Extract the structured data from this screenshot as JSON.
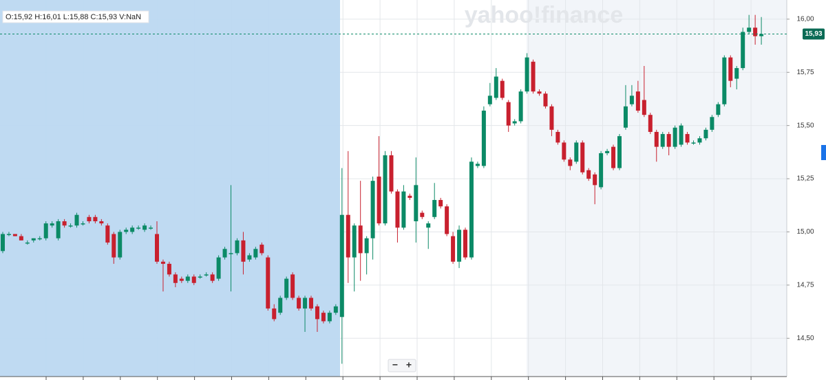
{
  "chart_data": {
    "type": "candlestick",
    "ohlc_label": "O:15,92  H:16,01  L:15,88  C:15,93  V:NaN",
    "watermark": "yahoo!finance",
    "zoom_out": "−",
    "zoom_in": "+",
    "last_price": {
      "value": 15.93,
      "label": "15,93"
    },
    "ylim": [
      14.32,
      16.09
    ],
    "yticks": [
      {
        "value": 14.5,
        "label": "14,50"
      },
      {
        "value": 14.75,
        "label": "14,75"
      },
      {
        "value": 15,
        "label": "15,00"
      },
      {
        "value": 15.25,
        "label": "15,25"
      },
      {
        "value": 15.5,
        "label": "15,50"
      },
      {
        "value": 15.75,
        "label": "15,75"
      },
      {
        "value": 16,
        "label": "16,00"
      }
    ],
    "grid": true,
    "up_color": "#0b8a66",
    "down_color": "#c8202e",
    "open": [
      14.91,
      14.99,
      14.99,
      14.98,
      14.95,
      14.96,
      14.97,
      14.97,
      15.03,
      14.97,
      15.05,
      15.03,
      15.03,
      15.04,
      15.07,
      15.07,
      15.05,
      15.03,
      14.99,
      14.88,
      15.0,
      15.0,
      15.02,
      15.01,
      15.02,
      14.99,
      14.86,
      14.85,
      14.8,
      14.78,
      14.77,
      14.79,
      14.79,
      14.8,
      14.8,
      14.78,
      14.88,
      14.9,
      14.9,
      14.96,
      14.87,
      14.88,
      14.94,
      14.88,
      14.64,
      14.62,
      14.69,
      14.8,
      14.69,
      14.64,
      14.69,
      14.65,
      14.62,
      14.58,
      14.62,
      14.6,
      15.08,
      14.88,
      15.03,
      14.9,
      14.97,
      15.26,
      15.04,
      15.36,
      15.19,
      15.02,
      15.17,
      15.05,
      15.09,
      15.02,
      15.07,
      15.15,
      15.12,
      14.98,
      14.86,
      15.01,
      14.88,
      15.31,
      15.31,
      15.6,
      15.63,
      15.71,
      15.61,
      15.51,
      15.52,
      15.66,
      15.8,
      15.66,
      15.65,
      15.59,
      15.47,
      15.42,
      15.34,
      15.33,
      15.42,
      15.29,
      15.27,
      15.21,
      15.37,
      15.4,
      15.3,
      15.49,
      15.6,
      15.66,
      15.62,
      15.55,
      15.47,
      15.4,
      15.46,
      15.4,
      15.41,
      15.46,
      15.42,
      15.42,
      15.44,
      15.48,
      15.55,
      15.6,
      15.82,
      15.72,
      15.77,
      15.94,
      15.96,
      15.92
    ],
    "high": [
      15.0,
      15.0,
      14.99,
      14.99,
      14.96,
      14.97,
      14.98,
      15.05,
      15.05,
      15.06,
      15.06,
      15.04,
      15.09,
      15.05,
      15.08,
      15.08,
      15.06,
      15.04,
      15.0,
      15.01,
      15.02,
      15.03,
      15.03,
      15.04,
      15.03,
      15.05,
      14.87,
      14.86,
      14.81,
      14.79,
      14.8,
      14.8,
      14.8,
      14.81,
      14.81,
      14.89,
      14.93,
      15.22,
      14.97,
      15.0,
      14.9,
      14.93,
      14.95,
      14.89,
      14.66,
      14.7,
      14.79,
      14.81,
      14.7,
      14.7,
      14.7,
      14.66,
      14.63,
      14.63,
      14.66,
      15.3,
      15.38,
      15.04,
      15.24,
      14.98,
      15.26,
      15.45,
      15.38,
      15.38,
      15.2,
      15.22,
      15.18,
      15.35,
      15.1,
      15.05,
      15.23,
      15.16,
      15.13,
      15.0,
      15.03,
      15.02,
      15.35,
      15.33,
      15.59,
      15.7,
      15.77,
      15.72,
      15.62,
      15.53,
      15.67,
      15.84,
      15.81,
      15.67,
      15.66,
      15.6,
      15.48,
      15.43,
      15.35,
      15.43,
      15.43,
      15.3,
      15.28,
      15.38,
      15.39,
      15.41,
      15.46,
      15.69,
      15.69,
      15.71,
      15.78,
      15.56,
      15.48,
      15.47,
      15.47,
      15.5,
      15.51,
      15.47,
      15.43,
      15.45,
      15.49,
      15.55,
      15.61,
      15.83,
      15.83,
      15.78,
      15.96,
      16.02,
      16.02,
      16.01
    ],
    "low": [
      14.9,
      14.98,
      14.98,
      14.96,
      14.94,
      14.95,
      14.96,
      14.96,
      15.02,
      14.96,
      15.02,
      15.02,
      15.02,
      15.03,
      15.04,
      15.04,
      15.03,
      14.94,
      14.85,
      14.87,
      14.99,
      14.99,
      15.01,
      15.0,
      15.01,
      14.85,
      14.72,
      14.79,
      14.74,
      14.76,
      14.76,
      14.75,
      14.78,
      14.79,
      14.76,
      14.77,
      14.87,
      14.72,
      14.89,
      14.8,
      14.86,
      14.87,
      14.89,
      14.63,
      14.58,
      14.61,
      14.68,
      14.68,
      14.63,
      14.53,
      14.63,
      14.53,
      14.57,
      14.57,
      14.61,
      14.38,
      14.76,
      14.72,
      14.77,
      14.8,
      14.87,
      15.03,
      15.03,
      15.18,
      14.95,
      15.01,
      15.15,
      14.95,
      15.06,
      14.92,
      15.06,
      15.11,
      14.98,
      14.85,
      14.83,
      14.87,
      14.87,
      15.3,
      15.3,
      15.59,
      15.62,
      15.62,
      15.47,
      15.5,
      15.51,
      15.65,
      15.65,
      15.64,
      15.58,
      15.45,
      15.41,
      15.33,
      15.29,
      15.32,
      15.27,
      15.24,
      15.13,
      15.2,
      15.36,
      15.29,
      15.29,
      15.48,
      15.59,
      15.56,
      15.54,
      15.46,
      15.33,
      15.39,
      15.36,
      15.39,
      15.4,
      15.41,
      15.41,
      15.41,
      15.43,
      15.47,
      15.54,
      15.59,
      15.68,
      15.67,
      15.76,
      15.93,
      15.88,
      15.88
    ],
    "close": [
      14.99,
      14.99,
      14.98,
      14.96,
      14.95,
      14.97,
      14.97,
      15.04,
      15.04,
      15.05,
      15.03,
      15.03,
      15.08,
      15.04,
      15.05,
      15.05,
      15.04,
      14.95,
      14.88,
      15.0,
      15.01,
      15.02,
      15.02,
      15.03,
      15.02,
      14.86,
      14.85,
      14.8,
      14.76,
      14.77,
      14.79,
      14.76,
      14.79,
      14.8,
      14.77,
      14.88,
      14.92,
      14.9,
      14.96,
      14.86,
      14.89,
      14.92,
      14.9,
      14.64,
      14.59,
      14.69,
      14.78,
      14.69,
      14.64,
      14.69,
      14.64,
      14.59,
      14.58,
      14.62,
      14.65,
      15.08,
      14.88,
      15.03,
      14.9,
      14.97,
      15.24,
      15.04,
      15.36,
      15.19,
      15.02,
      15.19,
      15.16,
      15.22,
      15.07,
      15.04,
      15.15,
      15.12,
      14.99,
      14.86,
      15.01,
      14.88,
      15.33,
      15.32,
      15.57,
      15.64,
      15.73,
      15.63,
      15.5,
      15.52,
      15.66,
      15.82,
      15.66,
      15.65,
      15.59,
      15.48,
      15.42,
      15.34,
      15.31,
      15.42,
      15.28,
      15.25,
      15.22,
      15.37,
      15.38,
      15.3,
      15.45,
      15.59,
      15.64,
      15.57,
      15.55,
      15.47,
      15.4,
      15.46,
      15.4,
      15.49,
      15.5,
      15.42,
      15.42,
      15.44,
      15.48,
      15.54,
      15.6,
      15.82,
      15.71,
      15.77,
      15.94,
      15.96,
      15.92,
      15.93
    ]
  }
}
